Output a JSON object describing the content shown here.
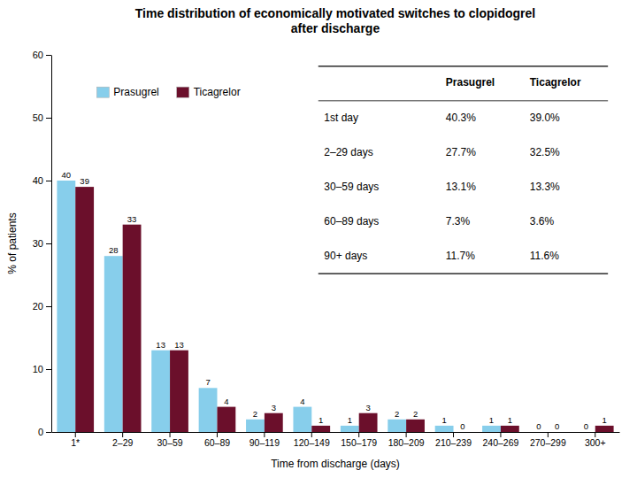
{
  "chart_data": {
    "type": "bar",
    "title": "Time distribution of economically motivated switches to clopidogrel\nafter discharge",
    "xlabel": "Time from discharge (days)",
    "ylabel": "% of patients",
    "categories": [
      "1*",
      "2–29",
      "30–59",
      "60–89",
      "90–119",
      "120–149",
      "150–179",
      "180–209",
      "210–239",
      "240–269",
      "270–299",
      "300+"
    ],
    "series": [
      {
        "name": "Prasugrel",
        "color": "#87CEEB",
        "values": [
          40,
          28,
          13,
          7,
          2,
          4,
          1,
          2,
          1,
          1,
          0,
          0
        ]
      },
      {
        "name": "Ticagrelor",
        "color": "#6B0F2B",
        "values": [
          39,
          33,
          13,
          4,
          3,
          1,
          3,
          2,
          0,
          1,
          0,
          1
        ]
      }
    ],
    "ylim": [
      0,
      60
    ],
    "yticks": [
      0,
      10,
      20,
      30,
      40,
      50,
      60
    ],
    "data_labels": true,
    "legend": "upper left",
    "grid": false,
    "table": {
      "columns": [
        "Prasugrel",
        "Ticagrelor"
      ],
      "rows": [
        [
          "1st day",
          "40.3%",
          "39.0%"
        ],
        [
          "2–29 days",
          "27.7%",
          "32.5%"
        ],
        [
          "30–59 days",
          "13.1%",
          "13.3%"
        ],
        [
          "60–89 days",
          "7.3%",
          "3.6%"
        ],
        [
          "90+ days",
          "11.7%",
          "11.6%"
        ]
      ]
    }
  }
}
